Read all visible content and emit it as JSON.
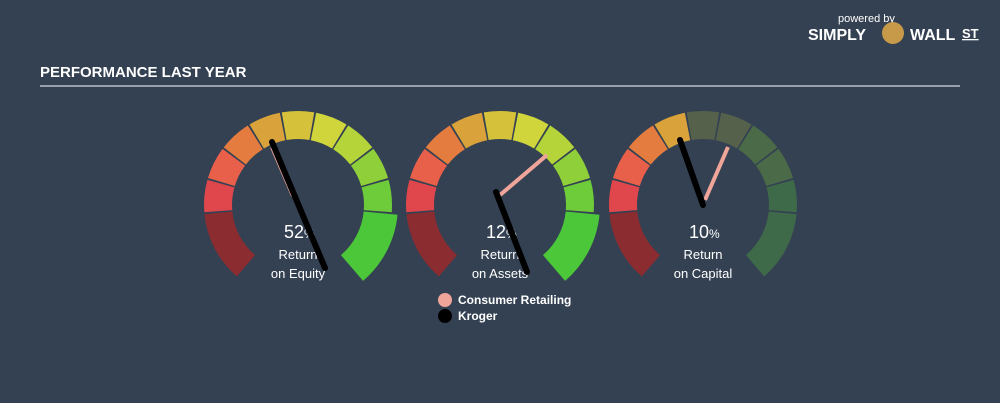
{
  "brand": {
    "powered_by": "powered by",
    "simply": "SIMPLY",
    "wall": "WALL",
    "st": "ST"
  },
  "title": "PERFORMANCE LAST YEAR",
  "gauges": [
    {
      "value": "52",
      "unit": "%",
      "label": [
        "Return",
        "on Equity"
      ]
    },
    {
      "value": "12",
      "unit": "%",
      "label": [
        "Return",
        "on Assets"
      ]
    },
    {
      "value": "10",
      "unit": "%",
      "label": [
        "Return",
        "on Capital"
      ]
    }
  ],
  "legend": [
    "Consumer Retailing",
    "Kroger"
  ]
}
